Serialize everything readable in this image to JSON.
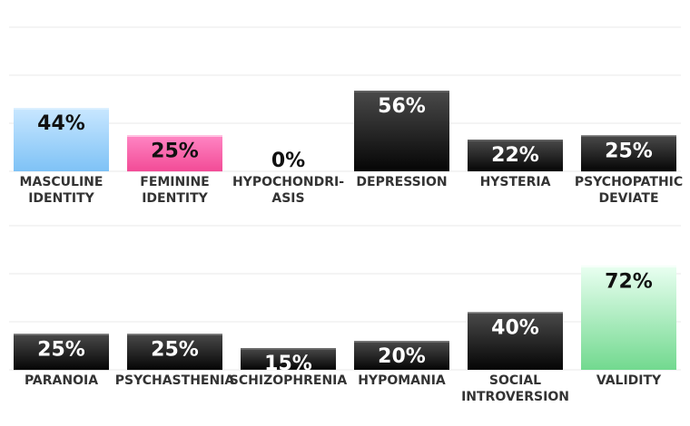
{
  "chart_data": {
    "type": "bar",
    "title": "",
    "unit": "%",
    "ylim": [
      0,
      100
    ],
    "grid": true,
    "panels": [
      {
        "bars": [
          {
            "category": [
              "MASCULINE",
              "IDENTITY"
            ],
            "value": 44,
            "label": "44%",
            "fill": "light-blue"
          },
          {
            "category": [
              "FEMININE",
              "IDENTITY"
            ],
            "value": 25,
            "label": "25%",
            "fill": "pink"
          },
          {
            "category": [
              "HYPOCHONDRI-",
              "ASIS"
            ],
            "value": 0,
            "label": "0%",
            "fill": "black"
          },
          {
            "category": [
              "DEPRESSION"
            ],
            "value": 56,
            "label": "56%",
            "fill": "black"
          },
          {
            "category": [
              "HYSTERIA"
            ],
            "value": 22,
            "label": "22%",
            "fill": "black"
          },
          {
            "category": [
              "PSYCHOPATHIC",
              "DEVIATE"
            ],
            "value": 25,
            "label": "25%",
            "fill": "black"
          }
        ]
      },
      {
        "bars": [
          {
            "category": [
              "PARANOIA"
            ],
            "value": 25,
            "label": "25%",
            "fill": "black"
          },
          {
            "category": [
              "PSYCHASTHENIA"
            ],
            "value": 25,
            "label": "25%",
            "fill": "black"
          },
          {
            "category": [
              "SCHIZOPHRENIA"
            ],
            "value": 15,
            "label": "15%",
            "fill": "black"
          },
          {
            "category": [
              "HYPOMANIA"
            ],
            "value": 20,
            "label": "20%",
            "fill": "black"
          },
          {
            "category": [
              "SOCIAL",
              "INTROVERSION"
            ],
            "value": 40,
            "label": "40%",
            "fill": "black"
          },
          {
            "category": [
              "VALIDITY"
            ],
            "value": 72,
            "label": "72%",
            "fill": "light-green"
          }
        ]
      }
    ]
  },
  "colors": {
    "light-blue": [
      "#c9e7ff",
      "#7ec2f6"
    ],
    "pink": [
      "#ff86c4",
      "#f24b96"
    ],
    "black": [
      "#4a4a4a",
      "#050505"
    ],
    "light-green": [
      "#e9fff1",
      "#72d98f"
    ],
    "gridline": "#e8e8e8",
    "label_on_dark": "#ffffff",
    "label_on_light": "#111111",
    "category_text": "#333333"
  }
}
